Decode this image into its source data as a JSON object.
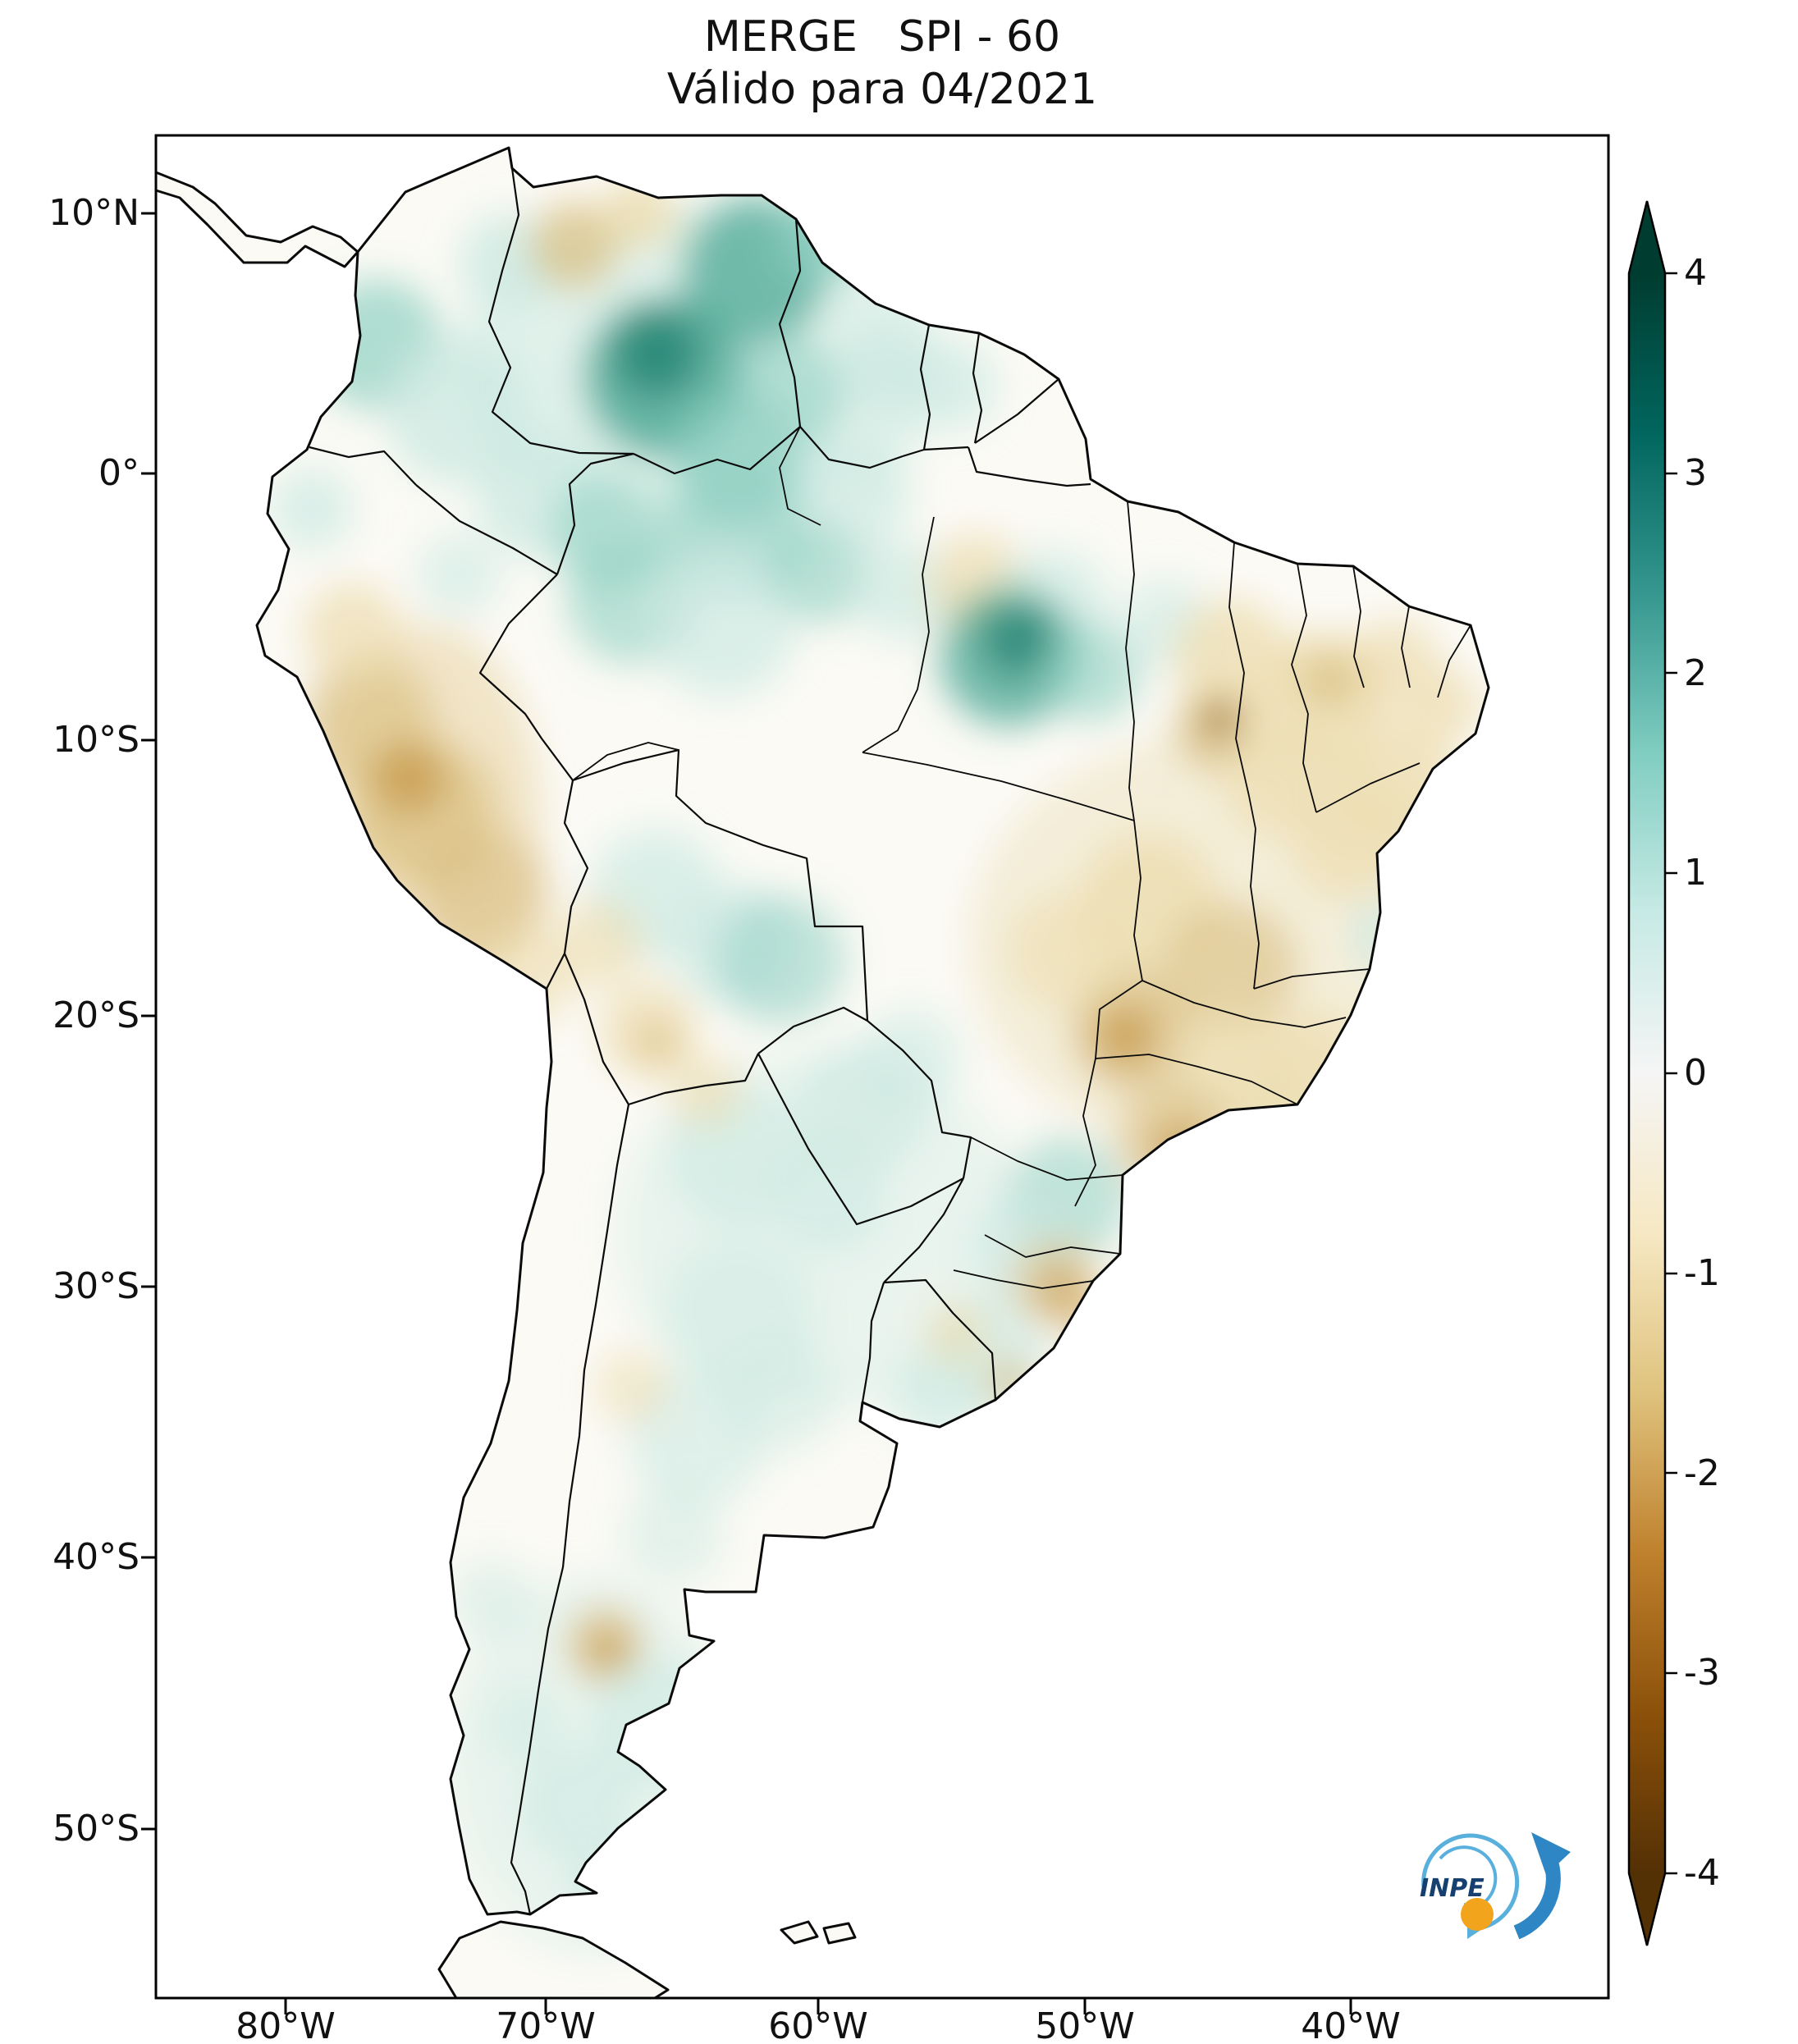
{
  "title": "MERGE   SPI - 60",
  "subtitle": "Válido para 04/2021",
  "axes": {
    "lat_ticks": [
      "10°N",
      "0°",
      "10°S",
      "20°S",
      "30°S",
      "40°S",
      "50°S"
    ],
    "lon_ticks": [
      "80°W",
      "70°W",
      "60°W",
      "50°W",
      "40°W"
    ]
  },
  "colorbar": {
    "ticks": [
      "4",
      "3",
      "2",
      "1",
      "0",
      "-1",
      "-2",
      "-3",
      "-4"
    ],
    "min": -4,
    "max": 4,
    "colormap": "BrBG (brown-white-teal)",
    "stops": [
      "#003c30",
      "#01665e",
      "#35978f",
      "#80cdc1",
      "#c7eae5",
      "#f5f5f5",
      "#f6e8c3",
      "#dfc27d",
      "#bf812d",
      "#8c510a",
      "#543005"
    ]
  },
  "logo": {
    "text": "INPE"
  },
  "map": {
    "region": "South America",
    "boundary_color": "#0a0a0a",
    "ocean_color": "#ffffff",
    "land_base_color": "#fbfaf5"
  },
  "chart_data": {
    "type": "heatmap",
    "title": "MERGE   SPI - 60",
    "subtitle": "Válido para 04/2021",
    "variable": "SPI-60",
    "region": "South America",
    "colorbar_range": [
      -4,
      4
    ],
    "colorbar_ticks": [
      4,
      3,
      2,
      1,
      0,
      -1,
      -2,
      -3,
      -4
    ],
    "lat_ticks": [
      "10°N",
      "0°",
      "10°S",
      "20°S",
      "30°S",
      "40°S",
      "50°S"
    ],
    "lon_ticks": [
      "80°W",
      "70°W",
      "60°W",
      "50°W",
      "40°W"
    ],
    "legend_position": "right",
    "qualitative_field": [
      {
        "region": "Venezuela / upper Rio Negro",
        "spi": "+1.5 to +2.5"
      },
      {
        "region": "Guianas and northern Amazon",
        "spi": "0 to +1.5"
      },
      {
        "region": "eastern Amazon (Pará)",
        "spi": "+1 to +2.5"
      },
      {
        "region": "Peruvian coast and Andes",
        "spi": "-1 to -2"
      },
      {
        "region": "Northeast Brazil interior",
        "spi": "-0.5 to -1.5"
      },
      {
        "region": "central Brazil (Goiás / Minas Gerais)",
        "spi": "-1 to -2"
      },
      {
        "region": "São Paulo / Paraná / Santa Catarina highlands",
        "spi": "-1 to -2"
      },
      {
        "region": "Bolivian lowlands / Paraguay",
        "spi": "0 to +1"
      },
      {
        "region": "central Argentina and Patagonia",
        "spi": "0 to +1"
      },
      {
        "region": "northwestern Patagonia foothills",
        "spi": "-1 to -2"
      }
    ]
  }
}
